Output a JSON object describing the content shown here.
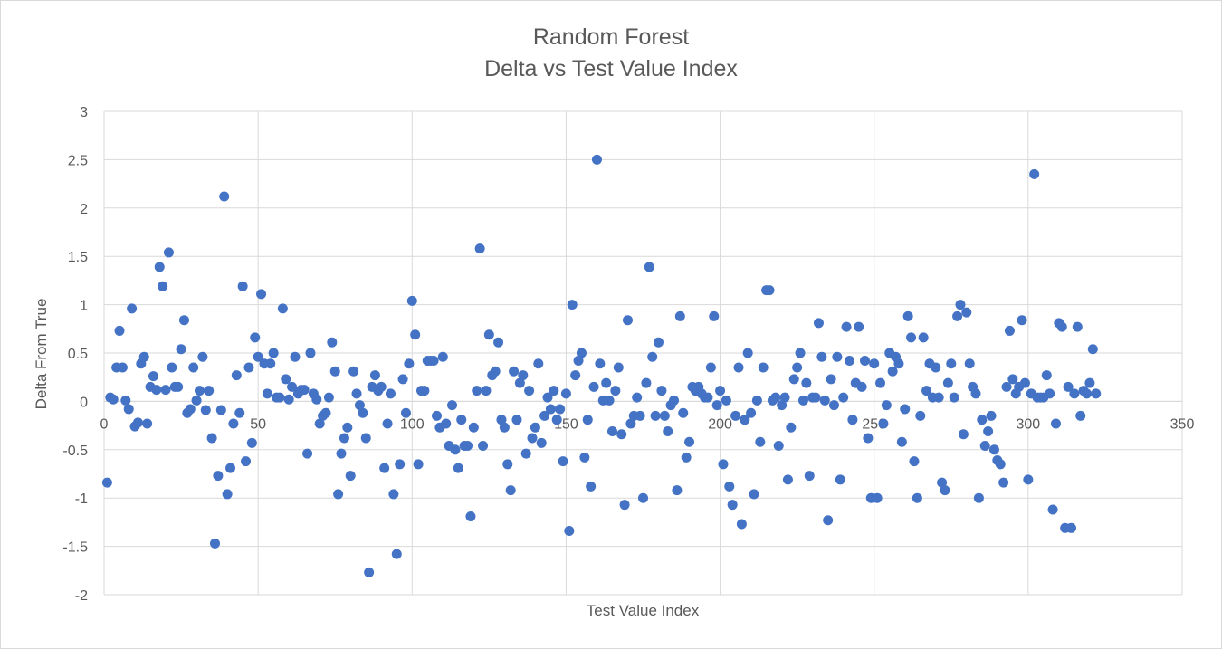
{
  "chart_data": {
    "type": "scatter",
    "title": "Random Forest",
    "subtitle": "Delta vs Test Value Index",
    "xlabel": "Test Value Index",
    "ylabel": "Delta From True",
    "xlim": [
      0,
      350
    ],
    "ylim": [
      -2,
      3
    ],
    "xticks": [
      "0",
      "50",
      "100",
      "150",
      "200",
      "250",
      "300",
      "350"
    ],
    "yticks": [
      "-2",
      "-1.5",
      "-1",
      "-0.5",
      "0",
      "0.5",
      "1",
      "1.5",
      "2",
      "2.5",
      "3"
    ],
    "grid": true,
    "marker_color": "#4472c4",
    "x": [
      1,
      2,
      3,
      4,
      5,
      6,
      7,
      8,
      9,
      10,
      11,
      12,
      13,
      14,
      15,
      16,
      17,
      18,
      19,
      20,
      21,
      22,
      23,
      24,
      25,
      26,
      27,
      28,
      29,
      30,
      31,
      32,
      33,
      34,
      35,
      36,
      37,
      38,
      39,
      40,
      41,
      42,
      43,
      44,
      45,
      46,
      47,
      48,
      49,
      50,
      51,
      52,
      53,
      54,
      55,
      56,
      57,
      58,
      59,
      60,
      61,
      62,
      63,
      64,
      65,
      66,
      67,
      68,
      69,
      70,
      71,
      72,
      73,
      74,
      75,
      76,
      77,
      78,
      79,
      80,
      81,
      82,
      83,
      84,
      85,
      86,
      87,
      88,
      89,
      90,
      91,
      92,
      93,
      94,
      95,
      96,
      97,
      98,
      99,
      100,
      101,
      102,
      103,
      104,
      105,
      106,
      107,
      108,
      109,
      110,
      111,
      112,
      113,
      114,
      115,
      116,
      117,
      118,
      119,
      120,
      121,
      122,
      123,
      124,
      125,
      126,
      127,
      128,
      129,
      130,
      131,
      132,
      133,
      134,
      135,
      136,
      137,
      138,
      139,
      140,
      141,
      142,
      143,
      144,
      145,
      146,
      147,
      148,
      149,
      150,
      151,
      152,
      153,
      154,
      155,
      156,
      157,
      158,
      159,
      160,
      161,
      162,
      163,
      164,
      165,
      166,
      167,
      168,
      169,
      170,
      171,
      172,
      173,
      174,
      175,
      176,
      177,
      178,
      179,
      180,
      181,
      182,
      183,
      184,
      185,
      186,
      187,
      188,
      189,
      190,
      191,
      192,
      193,
      194,
      195,
      196,
      197,
      198,
      199,
      200,
      201,
      202,
      203,
      204,
      205,
      206,
      207,
      208,
      209,
      210,
      211,
      212,
      213,
      214,
      215,
      216,
      217,
      218,
      219,
      220,
      221,
      222,
      223,
      224,
      225,
      226,
      227,
      228,
      229,
      230,
      231,
      232,
      233,
      234,
      235,
      236,
      237,
      238,
      239,
      240,
      241,
      242,
      243,
      244,
      245,
      246,
      247,
      248,
      249,
      250,
      251,
      252,
      253,
      254,
      255,
      256,
      257,
      258,
      259,
      260,
      261,
      262,
      263,
      264,
      265,
      266,
      267,
      268,
      269,
      270,
      271,
      272,
      273,
      274,
      275,
      276,
      277,
      278,
      279,
      280,
      281,
      282,
      283,
      284,
      285,
      286,
      287,
      288,
      289,
      290,
      291,
      292,
      293,
      294,
      295,
      296,
      297,
      298,
      299,
      300,
      301,
      302,
      303,
      304,
      305,
      306,
      307,
      308,
      309,
      310,
      311,
      312,
      313,
      314,
      315,
      316,
      317,
      318,
      319,
      320,
      321,
      322
    ],
    "y": [
      -0.84,
      0.04,
      0.02,
      0.35,
      0.73,
      0.35,
      0.01,
      -0.08,
      0.96,
      -0.26,
      -0.22,
      0.39,
      0.46,
      -0.23,
      0.15,
      0.26,
      0.12,
      1.39,
      1.19,
      0.12,
      1.54,
      0.35,
      0.15,
      0.15,
      0.54,
      0.84,
      -0.12,
      -0.08,
      0.35,
      0.01,
      0.11,
      0.46,
      -0.09,
      0.11,
      -0.38,
      -1.47,
      -0.77,
      -0.09,
      2.12,
      -0.96,
      -0.69,
      -0.23,
      0.27,
      -0.12,
      1.19,
      -0.62,
      0.35,
      -0.43,
      0.66,
      0.46,
      1.11,
      0.39,
      0.08,
      0.39,
      0.5,
      0.04,
      0.04,
      0.96,
      0.23,
      0.02,
      0.15,
      0.46,
      0.08,
      0.12,
      0.12,
      -0.54,
      0.5,
      0.08,
      0.02,
      -0.23,
      -0.15,
      -0.12,
      0.04,
      0.61,
      0.31,
      -0.96,
      -0.54,
      -0.38,
      -0.27,
      -0.77,
      0.31,
      0.08,
      -0.04,
      -0.12,
      -0.38,
      -1.77,
      0.15,
      0.27,
      0.11,
      0.15,
      -0.69,
      -0.23,
      0.08,
      -0.96,
      -1.58,
      -0.65,
      0.23,
      -0.12,
      0.39,
      1.04,
      0.69,
      -0.65,
      0.11,
      0.11,
      0.42,
      0.42,
      0.42,
      -0.15,
      -0.27,
      0.46,
      -0.23,
      -0.46,
      -0.04,
      -0.5,
      -0.69,
      -0.19,
      -0.46,
      -0.46,
      -1.19,
      -0.27,
      0.11,
      1.58,
      -0.46,
      0.11,
      0.69,
      0.27,
      0.31,
      0.61,
      -0.19,
      -0.27,
      -0.65,
      -0.92,
      0.31,
      -0.19,
      0.19,
      0.27,
      -0.54,
      0.11,
      -0.38,
      -0.27,
      0.39,
      -0.43,
      -0.15,
      0.04,
      -0.08,
      0.11,
      -0.19,
      -0.08,
      -0.62,
      0.08,
      -1.34,
      1.0,
      0.27,
      0.42,
      0.5,
      -0.58,
      -0.19,
      -0.88,
      0.15,
      2.5,
      0.39,
      0.01,
      0.19,
      0.01,
      -0.31,
      0.11,
      0.35,
      -0.34,
      -1.07,
      0.84,
      -0.23,
      -0.15,
      0.04,
      -0.15,
      -1.0,
      0.19,
      1.39,
      0.46,
      -0.15,
      0.61,
      0.11,
      -0.15,
      -0.31,
      -0.04,
      0.01,
      -0.92,
      0.88,
      -0.12,
      -0.58,
      -0.42,
      0.15,
      0.11,
      0.15,
      0.08,
      0.04,
      0.04,
      0.35,
      0.88,
      -0.04,
      0.11,
      -0.65,
      0.01,
      -0.88,
      -1.07,
      -0.15,
      0.35,
      -1.27,
      -0.19,
      0.5,
      -0.12,
      -0.96,
      0.01,
      -0.42,
      0.35,
      1.15,
      1.15,
      0.01,
      0.04,
      -0.46,
      -0.04,
      0.04,
      -0.81,
      -0.27,
      0.23,
      0.35,
      0.5,
      0.01,
      0.19,
      -0.77,
      0.04,
      0.04,
      0.81,
      0.46,
      0.01,
      -1.23,
      0.23,
      -0.04,
      0.46,
      -0.81,
      0.04,
      0.77,
      0.42,
      -0.19,
      0.19,
      0.77,
      0.15,
      0.42,
      -0.38,
      -1.0,
      0.39,
      -1.0,
      0.19,
      -0.23,
      -0.04,
      0.5,
      0.31,
      0.46,
      0.39,
      -0.42,
      -0.08,
      0.88,
      0.66,
      -0.62,
      -1.0,
      -0.15,
      0.66,
      0.11,
      0.39,
      0.04,
      0.35,
      0.04,
      -0.84,
      -0.92,
      0.19,
      0.39,
      0.04,
      0.88,
      1.0,
      -0.34,
      0.92,
      0.39,
      0.15,
      0.08,
      -1.0,
      -0.19,
      -0.46,
      -0.31,
      -0.15,
      -0.5,
      -0.61,
      -0.65,
      -0.84,
      0.15,
      0.73,
      0.23,
      0.08,
      0.15,
      0.84,
      0.19,
      -0.81,
      0.08,
      2.35,
      0.04,
      0.04,
      0.04,
      0.27,
      0.08,
      -1.12,
      -0.23,
      0.81,
      0.77,
      -1.31,
      0.15,
      -1.31,
      0.08,
      0.77,
      -0.15,
      0.11,
      0.08,
      0.19,
      0.54,
      0.08
    ]
  }
}
